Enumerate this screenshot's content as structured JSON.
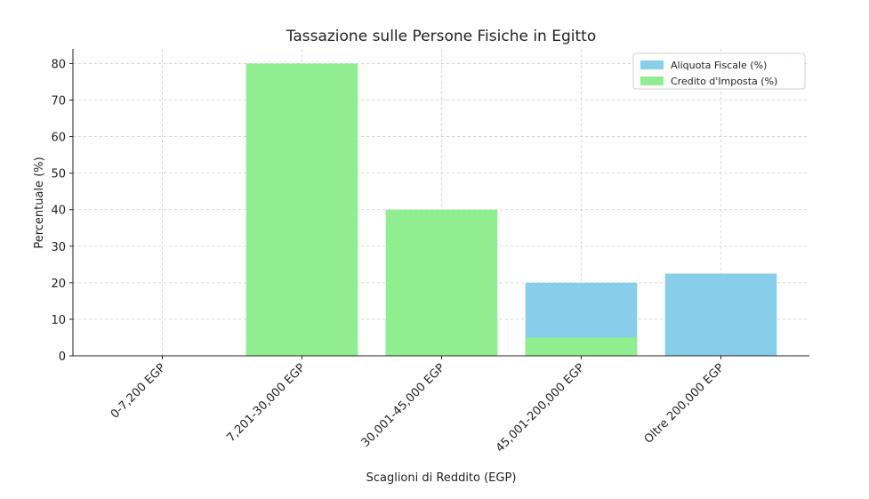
{
  "chart_data": {
    "type": "bar",
    "title": "Tassazione sulle Persone Fisiche in Egitto",
    "xlabel": "Scaglioni di Reddito (EGP)",
    "ylabel": "Percentuale (%)",
    "categories": [
      "0-7,200 EGP",
      "7,201-30,000 EGP",
      "30,001-45,000 EGP",
      "45,001-200,000 EGP",
      "Oltre 200,000 EGP"
    ],
    "series": [
      {
        "name": "Aliquota Fiscale (%)",
        "color": "#87ceeb",
        "values": [
          0,
          2.5,
          10,
          20,
          22.5
        ]
      },
      {
        "name": "Credito d'Imposta (%)",
        "color": "#90ee90",
        "values": [
          0,
          80,
          40,
          5,
          0
        ]
      }
    ],
    "ylim": [
      0,
      84
    ],
    "yticks": [
      0,
      10,
      20,
      30,
      40,
      50,
      60,
      70,
      80
    ],
    "grid": true,
    "legend": "upper right"
  }
}
